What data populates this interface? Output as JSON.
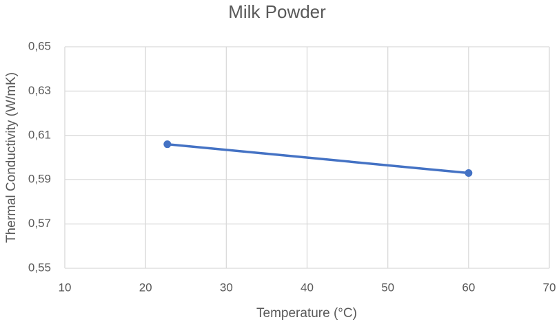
{
  "chart_data": {
    "type": "line",
    "title": "Milk Powder",
    "x_label": "Temperature (°C)",
    "y_label": "Thermal Conductivity (W/mK)",
    "x": [
      22.7,
      60
    ],
    "series": [
      {
        "color": "#4472c4",
        "values": [
          0.606,
          0.593
        ]
      }
    ],
    "xlim": [
      10,
      70
    ],
    "xticks": [
      10,
      20,
      30,
      40,
      50,
      60,
      70
    ],
    "ylim": [
      0.55,
      0.65
    ],
    "yticks": [
      {
        "value": 0.55,
        "label": "0,55"
      },
      {
        "value": 0.57,
        "label": "0,57"
      },
      {
        "value": 0.59,
        "label": "0,59"
      },
      {
        "value": 0.61,
        "label": "0,61"
      },
      {
        "value": 0.63,
        "label": "0,63"
      },
      {
        "value": 0.65,
        "label": "0,65"
      }
    ],
    "grid": true
  }
}
